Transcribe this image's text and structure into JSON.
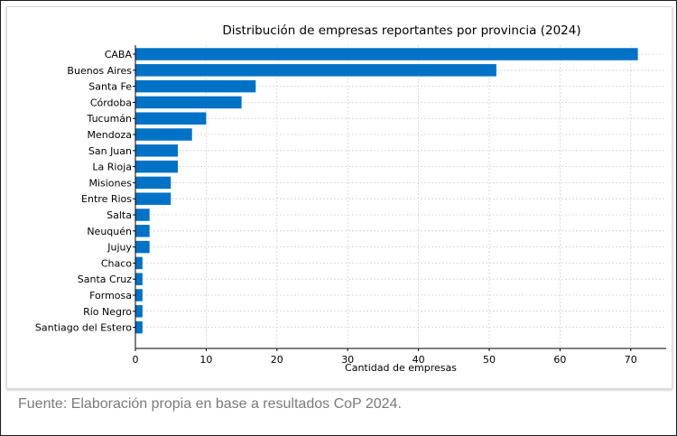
{
  "caption": "Fuente: Elaboración propia en base a resultados CoP 2024.",
  "chart_data": {
    "type": "bar",
    "orientation": "horizontal",
    "title": "Distribución de empresas reportantes por provincia (2024)",
    "xlabel": "Cantidad de empresas",
    "ylabel": "",
    "categories": [
      "CABA",
      "Buenos Aires",
      "Santa Fe",
      "Córdoba",
      "Tucumán",
      "Mendoza",
      "San Juan",
      "La Rioja",
      "Misiones",
      "Entre Rios",
      "Salta",
      "Neuquén",
      "Jujuy",
      "Chaco",
      "Santa Cruz",
      "Formosa",
      "Río Negro",
      "Santiago del Estero"
    ],
    "values": [
      71,
      51,
      17,
      15,
      10,
      8,
      6,
      6,
      5,
      5,
      2,
      2,
      2,
      1,
      1,
      1,
      1,
      1
    ],
    "xlim": [
      0,
      75
    ],
    "xticks": [
      0,
      10,
      20,
      30,
      40,
      50,
      60,
      70
    ],
    "grid": true,
    "bar_color": "#0072c6"
  }
}
